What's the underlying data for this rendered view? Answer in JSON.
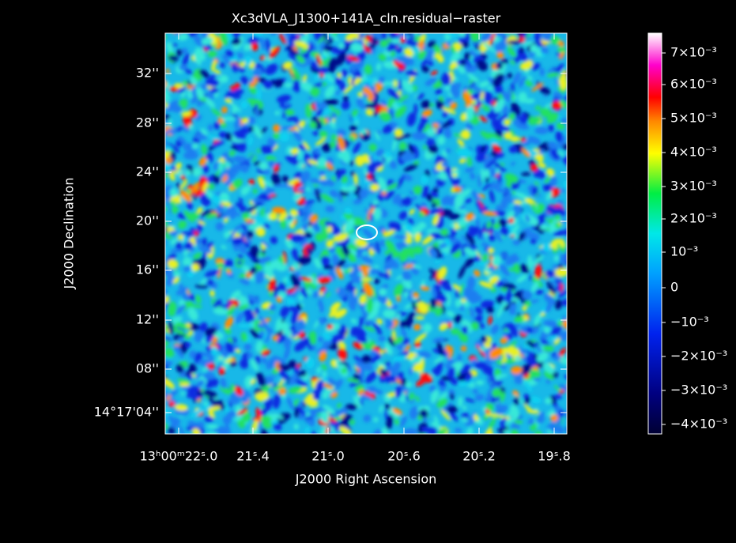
{
  "title": "Xc3dVLA_J1300+141A_cln.residual−raster",
  "x_axis_label": "J2000 Right Ascension",
  "y_axis_label": "J2000 Declination",
  "x_ticks": [
    "13ʰ00ᵐ22ˢ.0",
    "21ˢ.4",
    "21ˢ.0",
    "20ˢ.6",
    "20ˢ.2",
    "19ˢ.8"
  ],
  "y_ticks": [
    "32''",
    "28''",
    "24''",
    "20''",
    "16''",
    "12''",
    "08''",
    "14°17'04''"
  ],
  "colorbar_labels": [
    "7×10⁻³",
    "6×10⁻³",
    "5×10⁻³",
    "4×10⁻³",
    "3×10⁻³",
    "2×10⁻³",
    "10⁻³",
    "0",
    "−10⁻³",
    "−2×10⁻³",
    "−3×10⁻³",
    "−4×10⁻³"
  ]
}
